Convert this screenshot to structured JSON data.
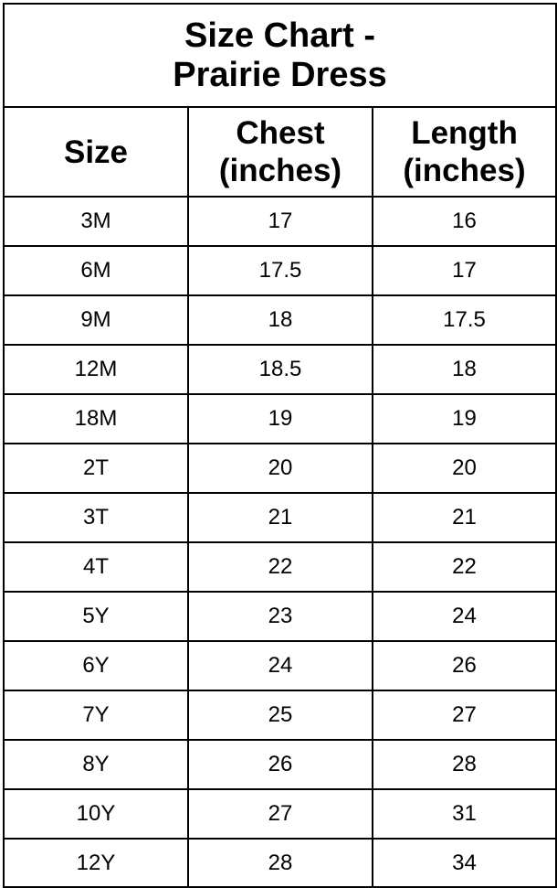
{
  "title_line1": "Size Chart -",
  "title_line2": "Prairie Dress",
  "headers": {
    "size": "Size",
    "chest_1": "Chest",
    "chest_2": "(inches)",
    "length_1": "Length",
    "length_2": "(inches)"
  },
  "rows": [
    {
      "size": "3M",
      "chest": "17",
      "length": "16"
    },
    {
      "size": "6M",
      "chest": "17.5",
      "length": "17"
    },
    {
      "size": "9M",
      "chest": "18",
      "length": "17.5"
    },
    {
      "size": "12M",
      "chest": "18.5",
      "length": "18"
    },
    {
      "size": "18M",
      "chest": "19",
      "length": "19"
    },
    {
      "size": "2T",
      "chest": "20",
      "length": "20"
    },
    {
      "size": "3T",
      "chest": "21",
      "length": "21"
    },
    {
      "size": "4T",
      "chest": "22",
      "length": "22"
    },
    {
      "size": "5Y",
      "chest": "23",
      "length": "24"
    },
    {
      "size": "6Y",
      "chest": "24",
      "length": "26"
    },
    {
      "size": "7Y",
      "chest": "25",
      "length": "27"
    },
    {
      "size": "8Y",
      "chest": "26",
      "length": "28"
    },
    {
      "size": "10Y",
      "chest": "27",
      "length": "31"
    },
    {
      "size": "12Y",
      "chest": "28",
      "length": "34"
    }
  ]
}
